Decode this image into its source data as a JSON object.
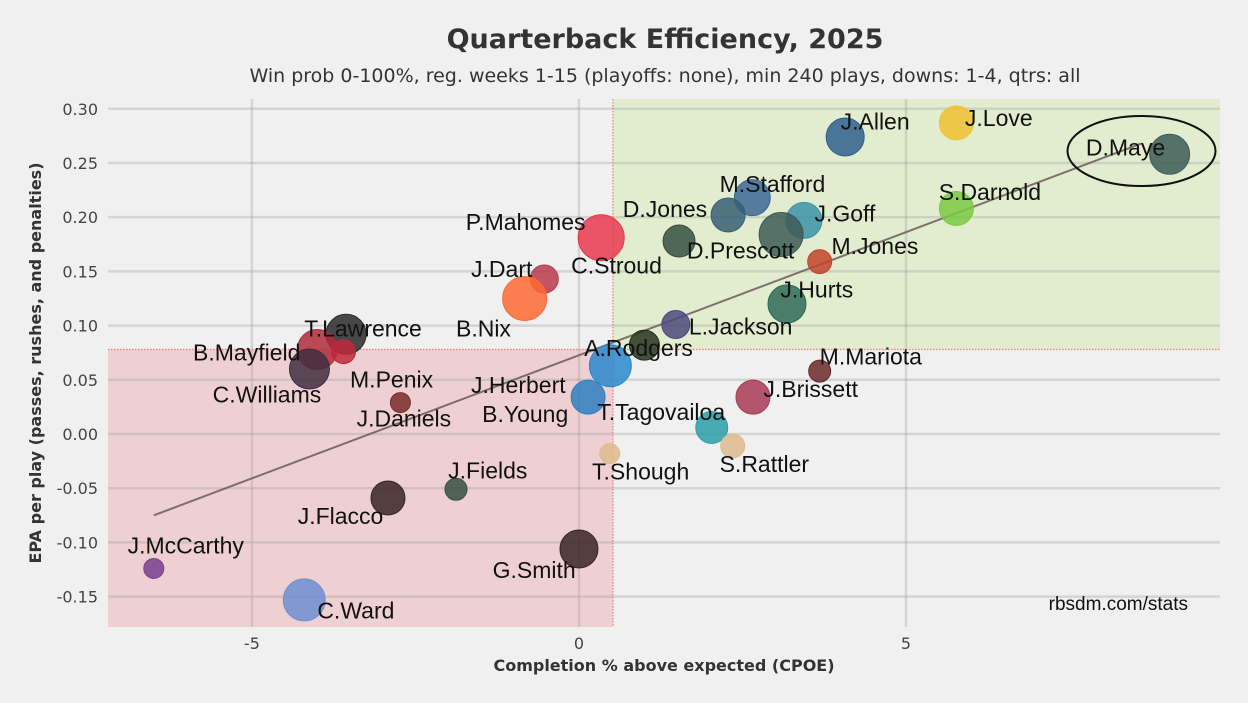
{
  "chart_data": {
    "type": "scatter",
    "title": "Quarterback Efficiency, 2025",
    "subtitle": "Win prob 0-100%, reg. weeks 1-15 (playoffs: none), min 240 plays, downs: 1-4, qtrs: all",
    "xlabel": "Completion % above expected (CPOE)",
    "ylabel": "EPA per play (passes, rushes, and penalties)",
    "credit": "rbsdm.com/stats",
    "xlim": [
      -7.2,
      9.8
    ],
    "ylim": [
      -0.178,
      0.309
    ],
    "xticks": [
      -5,
      0,
      5
    ],
    "xtick_labels": [
      "-5",
      "0",
      "5"
    ],
    "yticks": [
      0.3,
      0.25,
      0.2,
      0.15,
      0.1,
      0.05,
      0.0,
      -0.05,
      -0.1,
      -0.15
    ],
    "ytick_labels": [
      "0.30",
      "0.25",
      "0.20",
      "0.15",
      "0.10",
      "0.05",
      "0.00",
      "-0.05",
      "-0.10",
      "-0.15"
    ],
    "grid": true,
    "reference_lines": {
      "x_mean": 0.52,
      "y_mean": 0.078
    },
    "quadrants": {
      "good_color": "#e2edcf",
      "bad_color": "#efd0d2",
      "line_color": "#f08080"
    },
    "trendline": {
      "x": [
        -6.5,
        8.6
      ],
      "y": [
        -0.075,
        0.268
      ],
      "color": "#6b5b5b"
    },
    "highlight": {
      "name": "D.Maye",
      "center": [
        8.6,
        0.261
      ]
    },
    "points": [
      {
        "name": "J.Allen",
        "x": 4.07,
        "y": 0.274,
        "size": 19,
        "color": "#2f5f8f",
        "label": [
          4.0,
          0.281
        ]
      },
      {
        "name": "J.Love",
        "x": 5.77,
        "y": 0.287,
        "size": 17,
        "color": "#f0c030",
        "label": [
          5.9,
          0.284
        ]
      },
      {
        "name": "D.Maye",
        "x": 9.03,
        "y": 0.258,
        "size": 20,
        "color": "#3d5c56",
        "label": [
          7.75,
          0.257
        ]
      },
      {
        "name": "M.Stafford",
        "x": 2.65,
        "y": 0.218,
        "size": 18,
        "color": "#3b6795",
        "label": [
          2.15,
          0.223
        ]
      },
      {
        "name": "D.Jones",
        "x": 2.28,
        "y": 0.202,
        "size": 17,
        "color": "#365f73",
        "label": [
          0.67,
          0.2
        ]
      },
      {
        "name": "J.Goff",
        "x": 3.44,
        "y": 0.197,
        "size": 18,
        "color": "#3b92a8",
        "label": [
          3.6,
          0.196
        ]
      },
      {
        "name": "D.Prescott",
        "x": 3.09,
        "y": 0.184,
        "size": 22,
        "color": "#3d5a56",
        "label": [
          1.65,
          0.162
        ]
      },
      {
        "name": "S.Darnold",
        "x": 5.77,
        "y": 0.208,
        "size": 17,
        "color": "#7ac943",
        "label": [
          5.5,
          0.216
        ]
      },
      {
        "name": "M.Jones",
        "x": 3.68,
        "y": 0.159,
        "size": 12,
        "color": "#c0442a",
        "label": [
          3.86,
          0.166
        ]
      },
      {
        "name": "P.Mahomes",
        "x": 0.34,
        "y": 0.181,
        "size": 23,
        "color": "#e8384f",
        "label": [
          -1.73,
          0.188
        ]
      },
      {
        "name": "C.Stroud",
        "x": 1.53,
        "y": 0.178,
        "size": 16,
        "color": "#35503f",
        "label": [
          -0.12,
          0.148
        ]
      },
      {
        "name": "J.Dart",
        "x": -0.53,
        "y": 0.143,
        "size": 14,
        "color": "#b83a4e",
        "label": [
          -1.65,
          0.145
        ]
      },
      {
        "name": "B.Nix",
        "x": -0.83,
        "y": 0.125,
        "size": 22,
        "color": "#fb6a32",
        "label": [
          -1.88,
          0.09
        ]
      },
      {
        "name": "J.Hurts",
        "x": 3.18,
        "y": 0.12,
        "size": 19,
        "color": "#2e6a56",
        "label": [
          3.08,
          0.126
        ]
      },
      {
        "name": "L.Jackson",
        "x": 1.48,
        "y": 0.101,
        "size": 14,
        "color": "#4a4a7a",
        "label": [
          1.68,
          0.092
        ]
      },
      {
        "name": "T.Lawrence",
        "x": -3.56,
        "y": 0.092,
        "size": 20,
        "color": "#2a2a2a",
        "label": [
          -4.2,
          0.09
        ]
      },
      {
        "name": "B.Mayfield",
        "x": -4.0,
        "y": 0.078,
        "size": 20,
        "color": "#b02a3a",
        "label": [
          -5.9,
          0.068
        ]
      },
      {
        "name": "M.Penix",
        "x": -3.6,
        "y": 0.076,
        "size": 12,
        "color": "#c0283c",
        "label": [
          -3.5,
          0.043
        ]
      },
      {
        "name": "C.Williams",
        "x": -4.12,
        "y": 0.06,
        "size": 20,
        "color": "#3f2e40",
        "label": [
          -5.6,
          0.029
        ]
      },
      {
        "name": "A.Rodgers",
        "x": 1.0,
        "y": 0.082,
        "size": 15,
        "color": "#27321f",
        "label": [
          0.08,
          0.072
        ]
      },
      {
        "name": "J.Herbert",
        "x": 0.48,
        "y": 0.063,
        "size": 21,
        "color": "#2a88cc",
        "label": [
          -1.65,
          0.038
        ]
      },
      {
        "name": "B.Young",
        "x": 0.14,
        "y": 0.034,
        "size": 17,
        "color": "#2d7fc2",
        "label": [
          -1.48,
          0.011
        ]
      },
      {
        "name": "J.Daniels",
        "x": -2.73,
        "y": 0.029,
        "size": 10,
        "color": "#7a2a2a",
        "label": [
          -3.4,
          0.007
        ]
      },
      {
        "name": "M.Mariota",
        "x": 3.68,
        "y": 0.058,
        "size": 11,
        "color": "#6b2a2a",
        "label": [
          3.68,
          0.064
        ]
      },
      {
        "name": "J.Brissett",
        "x": 2.66,
        "y": 0.034,
        "size": 17,
        "color": "#a83a55",
        "label": [
          2.82,
          0.034
        ]
      },
      {
        "name": "T.Tagovailoa",
        "x": 2.03,
        "y": 0.006,
        "size": 16,
        "color": "#2a9fa8",
        "label": [
          0.28,
          0.013
        ]
      },
      {
        "name": "S.Rattler",
        "x": 2.35,
        "y": -0.011,
        "size": 12,
        "color": "#ddbb8d",
        "label": [
          2.15,
          -0.035
        ]
      },
      {
        "name": "T.Shough",
        "x": 0.47,
        "y": -0.018,
        "size": 10,
        "color": "#ddbb8d",
        "label": [
          0.2,
          -0.042
        ]
      },
      {
        "name": "J.Fields",
        "x": -1.88,
        "y": -0.051,
        "size": 11,
        "color": "#35503f",
        "label": [
          -2.0,
          -0.041
        ]
      },
      {
        "name": "J.Flacco",
        "x": -2.92,
        "y": -0.059,
        "size": 17,
        "color": "#3a2424",
        "label": [
          -4.3,
          -0.083
        ]
      },
      {
        "name": "G.Smith",
        "x": 0.0,
        "y": -0.106,
        "size": 19,
        "color": "#3a2424",
        "label": [
          -1.32,
          -0.133
        ]
      },
      {
        "name": "J.McCarthy",
        "x": -6.5,
        "y": -0.124,
        "size": 10,
        "color": "#7a3e8e",
        "label": [
          -6.9,
          -0.11
        ]
      },
      {
        "name": "C.Ward",
        "x": -4.2,
        "y": -0.153,
        "size": 21,
        "color": "#6f8ed0",
        "label": [
          -4.0,
          -0.17
        ]
      }
    ]
  }
}
